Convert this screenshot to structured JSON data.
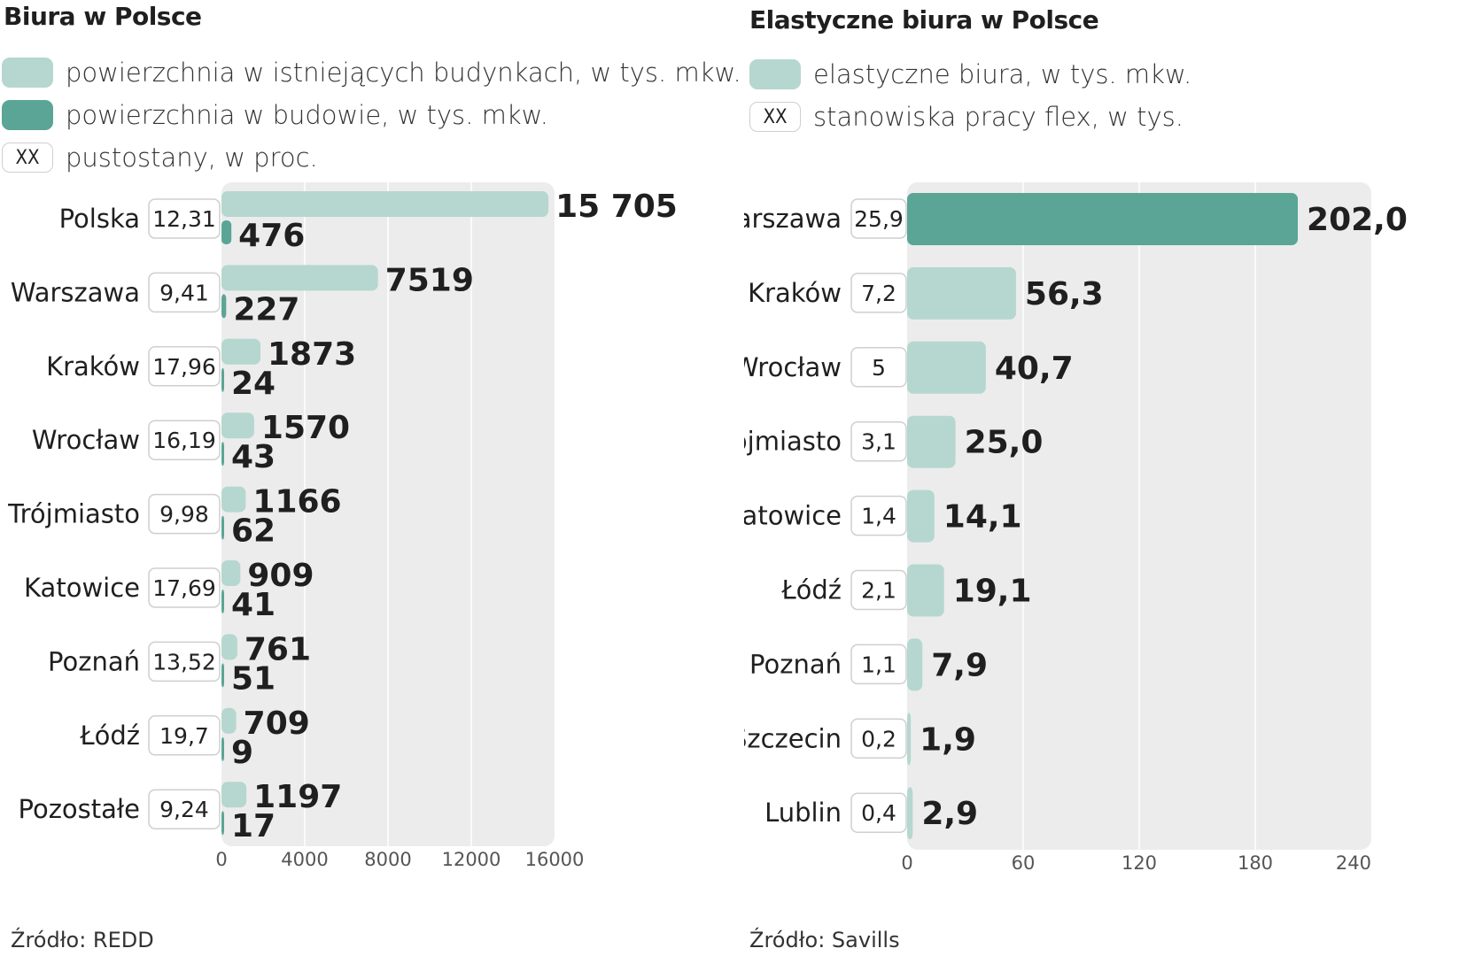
{
  "left": {
    "title": "Biura w Polsce",
    "legend": [
      {
        "swatch": "light",
        "label": "powierzchnia w istniejących budynkach, w  tys. mkw."
      },
      {
        "swatch": "dark",
        "label": "powierzchnia w budowie, w tys. mkw."
      },
      {
        "swatch": "box",
        "box_text": "XX",
        "label": "pustostany, w proc."
      }
    ],
    "source": "Źródło: REDD"
  },
  "right": {
    "title": "Elastyczne biura w Polsce",
    "legend": [
      {
        "swatch": "light",
        "label": "elastyczne biura, w tys. mkw."
      },
      {
        "swatch": "box",
        "box_text": "XX",
        "label": "stanowiska pracy flex, w tys."
      }
    ],
    "source": "Źródło: Savills"
  },
  "colors": {
    "light_bar": "#b5d7cf",
    "dark_bar": "#5aa596",
    "plot_bg": "#ececec",
    "grid": "#ffffff"
  },
  "chart_data": [
    {
      "type": "bar",
      "orientation": "horizontal",
      "title": "Biura w Polsce",
      "categories": [
        "Polska",
        "Warszawa",
        "Kraków",
        "Wrocław",
        "Trójmiasto",
        "Katowice",
        "Poznań",
        "Łódź",
        "Pozostałe"
      ],
      "series": [
        {
          "name": "powierzchnia w istniejących budynkach, w  tys. mkw.",
          "values": [
            15705,
            7519,
            1873,
            1570,
            1166,
            909,
            761,
            709,
            1197
          ],
          "labels": [
            "15 705",
            "7519",
            "1873",
            "1570",
            "1166",
            "909",
            "761",
            "709",
            "1197"
          ]
        },
        {
          "name": "powierzchnia w budowie, w tys. mkw.",
          "values": [
            476,
            227,
            24,
            43,
            62,
            41,
            51,
            9,
            17
          ],
          "labels": [
            "476",
            "227",
            "24",
            "43",
            "62",
            "41",
            "51",
            "9",
            "17"
          ]
        }
      ],
      "annotations": {
        "name": "pustostany, w proc.",
        "values": [
          "12,31",
          "9,41",
          "17,96",
          "16,19",
          "9,98",
          "17,69",
          "13,52",
          "19,7",
          "9,24"
        ]
      },
      "xlim": [
        0,
        16000
      ],
      "xticks": [
        0,
        4000,
        8000,
        12000,
        16000
      ],
      "grid": true,
      "source": "Źródło: REDD"
    },
    {
      "type": "bar",
      "orientation": "horizontal",
      "title": "Elastyczne biura w Polsce",
      "categories": [
        "Warszawa",
        "Kraków",
        "Wrocław",
        "Trójmiasto",
        "Katowice",
        "Łódź",
        "Poznań",
        "Szczecin",
        "Lublin"
      ],
      "series": [
        {
          "name": "elastyczne biura, w tys. mkw.",
          "values": [
            202.0,
            56.3,
            40.7,
            25.0,
            14.1,
            19.1,
            7.9,
            1.9,
            2.9
          ],
          "labels": [
            "202,0",
            "56,3",
            "40,7",
            "25,0",
            "14,1",
            "19,1",
            "7,9",
            "1,9",
            "2,9"
          ]
        }
      ],
      "annotations": {
        "name": "stanowiska pracy flex, w tys.",
        "values": [
          "25,9",
          "7,2",
          "5",
          "3,1",
          "1,4",
          "2,1",
          "1,1",
          "0,2",
          "0,4"
        ]
      },
      "highlight_index": 0,
      "xlim": [
        0,
        240
      ],
      "xticks": [
        0,
        60,
        120,
        180,
        240
      ],
      "grid": true,
      "source": "Źródło: Savills"
    }
  ]
}
